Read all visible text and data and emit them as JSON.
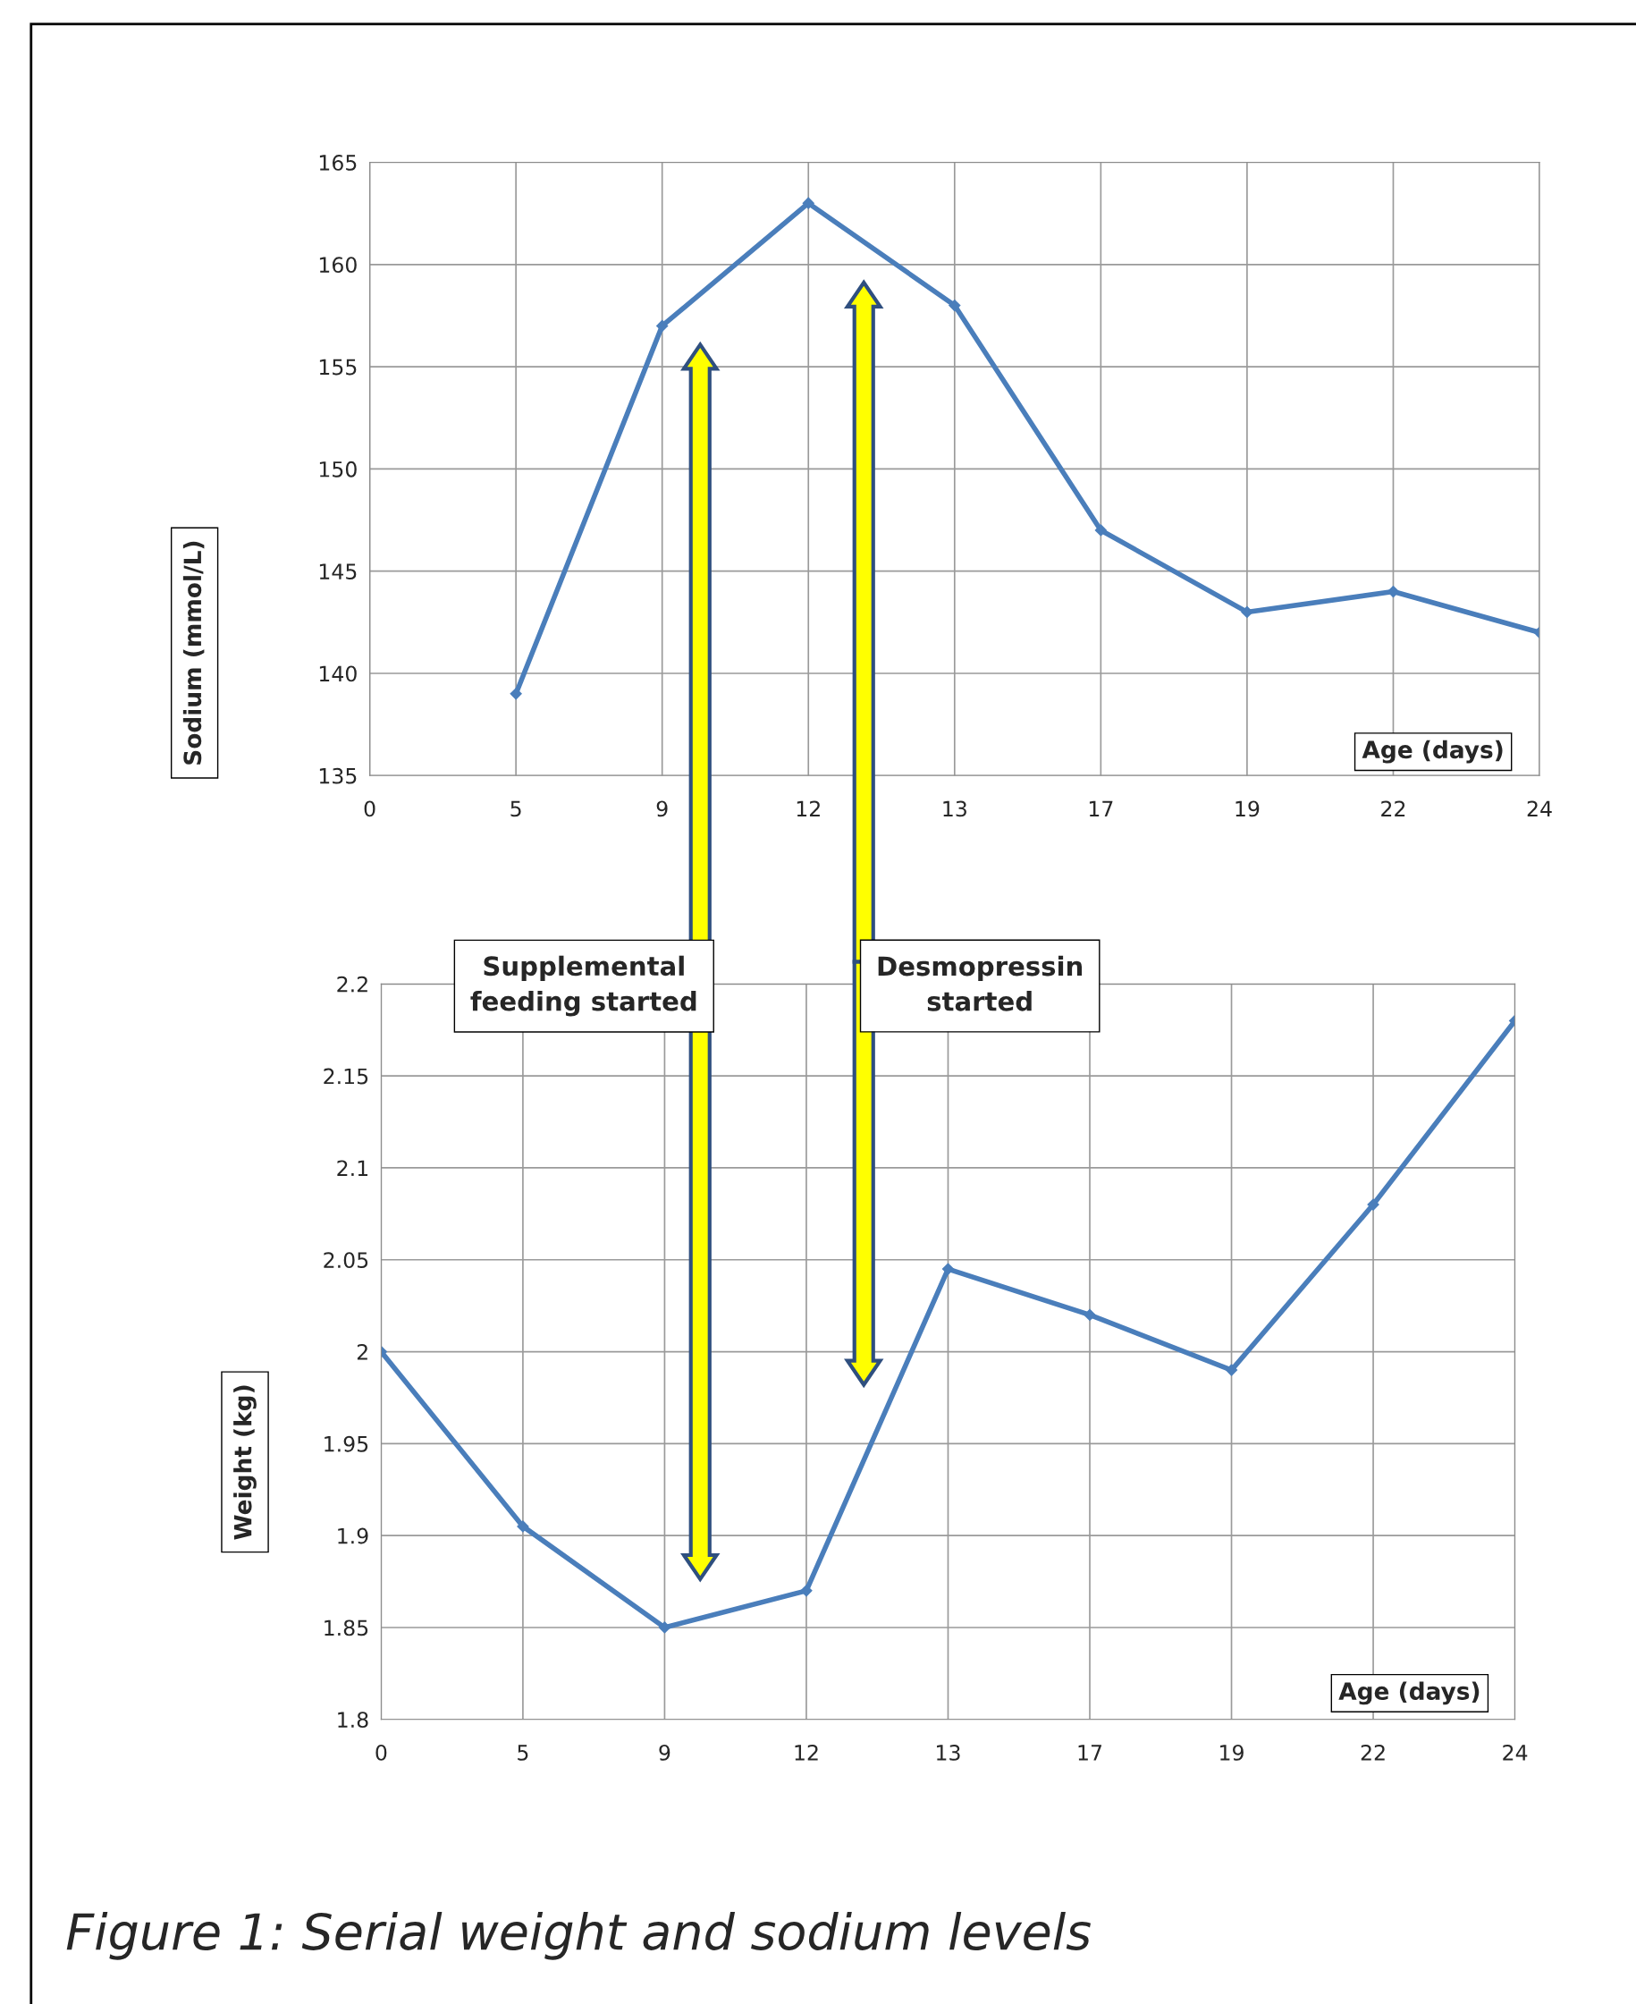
{
  "chart_data": [
    {
      "type": "line",
      "ylabel": "Sodium (mmol/L)",
      "xlabel": "Age (days)",
      "categories": [
        "0",
        "5",
        "9",
        "12",
        "13",
        "17",
        "19",
        "22",
        "24"
      ],
      "series": [
        {
          "color": "#4a7ebb",
          "values": [
            null,
            139,
            157,
            163,
            158,
            147,
            143,
            144,
            142
          ]
        }
      ],
      "ylim": [
        135,
        165
      ],
      "yticks": [
        135,
        140,
        145,
        150,
        155,
        160,
        165
      ],
      "grid": true,
      "marker": "diamond",
      "line_style": "solid",
      "annotations": [
        "Supplemental\nfeeding started",
        "Desmopressin\nstarted"
      ]
    },
    {
      "type": "line",
      "ylabel": "Weight (kg)",
      "xlabel": "Age (days)",
      "categories": [
        "0",
        "5",
        "9",
        "12",
        "13",
        "17",
        "19",
        "22",
        "24"
      ],
      "series": [
        {
          "color": "#4a7ebb",
          "values": [
            2.0,
            1.905,
            1.85,
            1.87,
            2.045,
            2.02,
            1.99,
            2.08,
            2.18
          ]
        }
      ],
      "ylim": [
        1.8,
        2.2
      ],
      "yticks": [
        1.8,
        1.85,
        1.9,
        1.95,
        2,
        2.05,
        2.1,
        2.15,
        2.2
      ],
      "grid": true,
      "marker": "diamond",
      "line_style": "solid",
      "annotations": [
        "Figure 1: Serial weight and sodium levels"
      ]
    }
  ]
}
